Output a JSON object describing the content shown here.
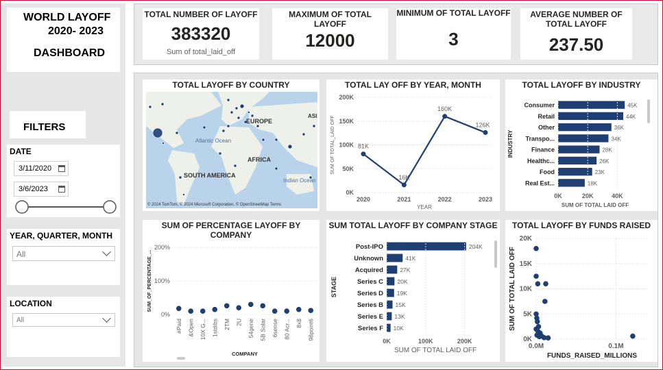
{
  "header": {
    "title_line1": "WORLD LAYOFF",
    "title_line2": "2020- 2023",
    "title_line3": "DASHBOARD"
  },
  "filters": {
    "heading": "FILTERS",
    "date_label": "DATE",
    "date_start": "3/11/2020",
    "date_end": "3/6/2023",
    "yqm_label": "YEAR, QUARTER, MONTH",
    "yqm_value": "All",
    "location_label": "LOCATION",
    "location_value": "All"
  },
  "kpis": [
    {
      "title": "TOTAL NUMBER OF LAYOFF",
      "value": "383320",
      "sub": "Sum of total_laid_off"
    },
    {
      "title": "MAXIMUM OF TOTAL LAYOFF",
      "value": "12000"
    },
    {
      "title": "MINIMUM OF TOTAL LAYOFF",
      "value": "3"
    },
    {
      "title": "AVERAGE NUMBER OF TOTAL LAYOFF",
      "value": "237.50"
    }
  ],
  "map": {
    "title": "TOTAL LAYOFF BY COUNTRY",
    "labels": {
      "europe": "EUROPE",
      "atlantic": "Atlantic Ocean",
      "africa": "AFRICA",
      "south_america": "SOUTH AMERICA",
      "indian": "Indian Ocean",
      "asia": "ASIA"
    },
    "attribution": "© 2024 TomTom, © 2024 Microsoft Corporation, © OpenStreetMap Terms"
  },
  "colors": {
    "bar": "#1f3f73",
    "line": "#1f3f73",
    "point": "#1f3f73",
    "grid": "#e5e5e5"
  },
  "chart_data": [
    {
      "type": "line",
      "title": "TOTAL LAY OFF BY YEAR, MONTH",
      "xlabel": "YEAR",
      "ylabel": "SUM OF TOTAL_LAID OFF",
      "x": [
        "2020",
        "2021",
        "2022",
        "2023"
      ],
      "values": [
        81000,
        16000,
        160000,
        126000
      ],
      "data_labels": [
        "81K",
        "16K",
        "160K",
        "126K"
      ],
      "ylim": [
        0,
        200000
      ],
      "yticks": [
        "0K",
        "50K",
        "100K",
        "150K",
        "200K"
      ]
    },
    {
      "type": "bar",
      "title": "TOTAL LAYOFF BY INDUSTRY",
      "xlabel": "SUM OF TOTAL LAID OFF",
      "ylabel": "INDUSTRY",
      "categories": [
        "Consumer",
        "Retail",
        "Other",
        "Transpo...",
        "Finance",
        "Healthc...",
        "Food",
        "Real Est..."
      ],
      "values": [
        45000,
        44000,
        36000,
        34000,
        28000,
        26000,
        23000,
        18000
      ],
      "data_labels": [
        "45K",
        "44K",
        "36K",
        "34K",
        "28K",
        "26K",
        "23K",
        "18K"
      ],
      "xlim": [
        0,
        50000
      ],
      "xticks": [
        "0K",
        "20K",
        "40K"
      ]
    },
    {
      "type": "scatter",
      "title": "SUM OF PERCENTAGE LAYOFF BY COMPANY",
      "xlabel": "COMPANY",
      "ylabel": "SUM_OF_PERCENTAGE_...",
      "categories": [
        "#Paid",
        "&Open",
        "10X G...",
        "1stdibs",
        "2TM",
        "2U",
        "54gene",
        "5B Solar",
        "6sense",
        "80 Acr...",
        "8x8",
        "98point6"
      ],
      "values": [
        18,
        10,
        10,
        15,
        26,
        20,
        30,
        26,
        10,
        10,
        15,
        12
      ],
      "ylim": [
        0,
        200
      ],
      "yticks": [
        "0%",
        "100%",
        "200%"
      ]
    },
    {
      "type": "bar",
      "title": "SUM TOTAL LAYOFF BY COMPANY STAGE",
      "xlabel": "SUM OF TOTAL LAID OFF",
      "ylabel": "STAGE",
      "categories": [
        "Post-IPO",
        "Unknown",
        "Acquired",
        "Series C",
        "Series D",
        "Series B",
        "Series E",
        "Series F"
      ],
      "values": [
        204000,
        41000,
        27000,
        20000,
        19000,
        15000,
        13000,
        10000
      ],
      "data_labels": [
        "204K",
        "41K",
        "27K",
        "20K",
        "19K",
        "15K",
        "13K",
        "10K"
      ],
      "xlim": [
        0,
        250000
      ],
      "xticks": [
        "0K",
        "100K",
        "200K"
      ]
    },
    {
      "type": "scatter",
      "title": "TOTAL LAYOFF BY FUNDS RAISED",
      "xlabel": "FUNDS_RAISED_MILLIONS",
      "ylabel": "SUM OF TOTAL LAID OFF",
      "xlim": [
        0,
        140000
      ],
      "ylim": [
        0,
        20000
      ],
      "xticks": [
        "0.0M",
        "0.1M"
      ],
      "yticks": [
        "0K",
        "5K",
        "10K",
        "15K",
        "20K"
      ],
      "points": [
        [
          0,
          18000
        ],
        [
          0,
          12500
        ],
        [
          2000,
          11000
        ],
        [
          12000,
          11000
        ],
        [
          11000,
          7500
        ],
        [
          0,
          5000
        ],
        [
          800,
          4200
        ],
        [
          1500,
          3500
        ],
        [
          3000,
          2500
        ],
        [
          5000,
          1200
        ],
        [
          7000,
          600
        ],
        [
          10000,
          300
        ],
        [
          15000,
          250
        ],
        [
          121000,
          600
        ],
        [
          0,
          2000
        ],
        [
          1000,
          800
        ],
        [
          2500,
          1500
        ],
        [
          4000,
          500
        ]
      ]
    }
  ]
}
